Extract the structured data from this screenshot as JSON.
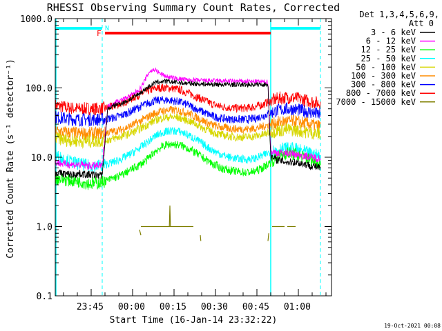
{
  "chart_data": {
    "type": "line",
    "title": "RHESSI Observing Summary Count Rates, Corrected",
    "xlabel": "Start Time (16-Jan-14 23:32:22)",
    "ylabel": "Corrected Count Rate (s⁻¹ detector⁻¹)",
    "x_unit": "minutes after 23:32:22",
    "xlim": [
      0,
      100
    ],
    "ylim": [
      0.1,
      1000
    ],
    "y_scale": "log",
    "x_tick_labels": [
      "23:45",
      "00:00",
      "00:15",
      "00:30",
      "00:45",
      "01:00"
    ],
    "x_tick_values": [
      12.6,
      27.6,
      42.6,
      57.6,
      72.6,
      87.6
    ],
    "y_tick_labels": [
      "0.1",
      "1.0",
      "10.0",
      "100.0",
      "1000.0"
    ],
    "y_tick_values": [
      0.1,
      1,
      10,
      100,
      1000
    ],
    "legend": {
      "placement": "right-outside",
      "header": "Det 1,3,4,5,6,9,",
      "header2": "Att 0"
    },
    "bars": {
      "night": {
        "label": "N",
        "color": "#00ffff",
        "intervals": [
          [
            0,
            17
          ],
          [
            78,
            96
          ]
        ]
      },
      "flare": {
        "label": "F",
        "color": "#ff0000",
        "intervals": [
          [
            18,
            78
          ]
        ]
      }
    },
    "dashed_lines_x": [
      17,
      96
    ],
    "solid_lines_x": [
      0,
      78
    ],
    "series": [
      {
        "name": "3 - 6 keV",
        "color": "#000000",
        "x": [
          0,
          3,
          6,
          9,
          12,
          15,
          17,
          19,
          22,
          25,
          28,
          31,
          34,
          36,
          38,
          40,
          42,
          45,
          48,
          52,
          56,
          60,
          64,
          68,
          72,
          76,
          77,
          78,
          81,
          84,
          87,
          90,
          93,
          96
        ],
        "y": [
          6,
          5.8,
          5.6,
          5.8,
          5.6,
          5.5,
          5.5,
          50,
          57,
          62,
          72,
          86,
          105,
          118,
          123,
          124,
          122,
          119,
          116,
          114,
          113,
          112,
          112,
          111,
          112,
          112,
          112,
          10,
          9,
          8.5,
          8.5,
          8,
          7.5,
          7
        ]
      },
      {
        "name": "6 - 12 keV",
        "color": "#ff00ff",
        "x": [
          0,
          3,
          6,
          9,
          12,
          15,
          17,
          19,
          22,
          25,
          28,
          31,
          34,
          36,
          38,
          40,
          42,
          45,
          48,
          52,
          56,
          60,
          64,
          68,
          72,
          76,
          77,
          78,
          81,
          84,
          87,
          90,
          93,
          96
        ],
        "y": [
          8.5,
          8,
          7.8,
          7.8,
          7.5,
          7.5,
          7.5,
          54,
          63,
          70,
          80,
          100,
          170,
          185,
          160,
          148,
          140,
          135,
          130,
          128,
          127,
          126,
          125,
          124,
          123,
          122,
          122,
          12,
          11.5,
          11.5,
          11,
          10.5,
          10,
          9.5
        ]
      },
      {
        "name": "12 - 25 keV",
        "color": "#00ff00",
        "x": [
          0,
          3,
          6,
          9,
          12,
          15,
          18,
          21,
          24,
          27,
          30,
          33,
          36,
          39,
          42,
          45,
          48,
          51,
          54,
          57,
          60,
          63,
          66,
          69,
          72,
          75,
          78,
          81,
          84,
          87,
          90,
          93,
          96
        ],
        "y": [
          5,
          4.8,
          4.6,
          4.5,
          4.2,
          4.2,
          4.5,
          5,
          5.5,
          6.5,
          7.5,
          9,
          12,
          14.5,
          15.5,
          15,
          13.5,
          11.5,
          9.5,
          8,
          7,
          6.5,
          6.2,
          6,
          6.2,
          7,
          8.5,
          10.5,
          11.5,
          11,
          10,
          9,
          8
        ]
      },
      {
        "name": "25 - 50 keV",
        "color": "#00ffff",
        "x": [
          0,
          3,
          6,
          9,
          12,
          15,
          18,
          21,
          24,
          27,
          30,
          33,
          36,
          39,
          42,
          45,
          48,
          51,
          54,
          57,
          60,
          63,
          66,
          69,
          72,
          75,
          78,
          81,
          84,
          87,
          90,
          93,
          96
        ],
        "y": [
          10.5,
          9.5,
          8.5,
          8,
          7.5,
          7.5,
          7.8,
          8.5,
          9.5,
          11,
          13,
          16,
          20,
          23,
          24,
          23.5,
          21,
          18,
          15,
          12.5,
          11,
          10,
          9.5,
          9.3,
          9.5,
          10.5,
          12,
          13,
          13.5,
          13,
          12,
          11,
          10.5
        ]
      },
      {
        "name": "50 - 100 keV",
        "color": "#d7d700",
        "x": [
          0,
          3,
          6,
          9,
          12,
          15,
          18,
          21,
          24,
          27,
          30,
          33,
          36,
          39,
          42,
          45,
          48,
          51,
          54,
          57,
          60,
          63,
          66,
          69,
          72,
          75,
          78,
          81,
          84,
          87,
          90,
          93,
          96
        ],
        "y": [
          19,
          18,
          17.5,
          17,
          17,
          17,
          17.5,
          18.5,
          20,
          22,
          25,
          29,
          34,
          37,
          38,
          37,
          34,
          30,
          26,
          23,
          21,
          20,
          19.5,
          19.5,
          20,
          21,
          23,
          24.5,
          25,
          24.5,
          23.5,
          22.5,
          21.5
        ]
      },
      {
        "name": "100 - 300 keV",
        "color": "#ff8c00",
        "x": [
          0,
          3,
          6,
          9,
          12,
          15,
          18,
          21,
          24,
          27,
          30,
          33,
          36,
          39,
          42,
          45,
          48,
          51,
          54,
          57,
          60,
          63,
          66,
          69,
          72,
          75,
          78,
          81,
          84,
          87,
          90,
          93,
          96
        ],
        "y": [
          24,
          23,
          22.5,
          22,
          22,
          22,
          22.5,
          23.5,
          25,
          28,
          32,
          37,
          43,
          47,
          48,
          47,
          43,
          38,
          33,
          29,
          27,
          26,
          25.5,
          25.5,
          26,
          27.5,
          30,
          32,
          33,
          32.5,
          31,
          29.5,
          28
        ]
      },
      {
        "name": "300 - 800 keV",
        "color": "#0000ff",
        "x": [
          0,
          3,
          6,
          9,
          12,
          15,
          18,
          21,
          24,
          27,
          30,
          33,
          36,
          39,
          42,
          45,
          48,
          51,
          54,
          57,
          60,
          63,
          66,
          69,
          72,
          75,
          78,
          81,
          84,
          87,
          90,
          93,
          96
        ],
        "y": [
          38,
          36.5,
          35.5,
          35,
          35,
          35,
          35.5,
          37,
          40,
          45,
          52,
          59,
          65,
          67,
          66,
          63,
          57,
          50,
          44,
          39,
          36.5,
          35.5,
          35,
          35,
          36,
          39,
          44,
          48,
          50,
          49,
          46.5,
          44,
          41
        ]
      },
      {
        "name": "800 - 7000 keV",
        "color": "#ff0000",
        "x": [
          0,
          3,
          6,
          9,
          12,
          15,
          18,
          21,
          24,
          27,
          30,
          33,
          36,
          39,
          42,
          45,
          48,
          51,
          54,
          57,
          60,
          63,
          66,
          69,
          72,
          75,
          78,
          81,
          84,
          87,
          90,
          93,
          96
        ],
        "y": [
          56,
          53,
          51,
          50,
          50,
          50,
          51,
          54,
          60,
          68,
          78,
          89,
          98,
          101,
          99,
          94,
          85,
          75,
          66,
          58,
          54,
          52,
          51,
          51,
          53,
          57,
          65,
          71,
          73,
          71,
          67,
          63,
          60
        ]
      },
      {
        "name": "7000 - 15000 keV",
        "color": "#7f7f00",
        "segments": [
          {
            "x": [
              30.5,
              31
            ],
            "y": [
              0.9,
              0.75
            ]
          },
          {
            "x": [
              31,
              42
            ],
            "y": [
              1.0,
              1.0
            ]
          },
          {
            "x": [
              41.3,
              41.5,
              41.7
            ],
            "y": [
              1.0,
              2.0,
              1.0
            ]
          },
          {
            "x": [
              42,
              50
            ],
            "y": [
              1.0,
              1.0
            ]
          },
          {
            "x": [
              52.5,
              52.7
            ],
            "y": [
              0.75,
              0.62
            ]
          },
          {
            "x": [
              77,
              77.3
            ],
            "y": [
              0.62,
              0.8
            ]
          },
          {
            "x": [
              78.5,
              83
            ],
            "y": [
              1.0,
              1.0
            ]
          },
          {
            "x": [
              84,
              87
            ],
            "y": [
              1.0,
              1.0
            ]
          }
        ]
      }
    ]
  },
  "footer_timestamp": "19-Oct-2021 00:08"
}
